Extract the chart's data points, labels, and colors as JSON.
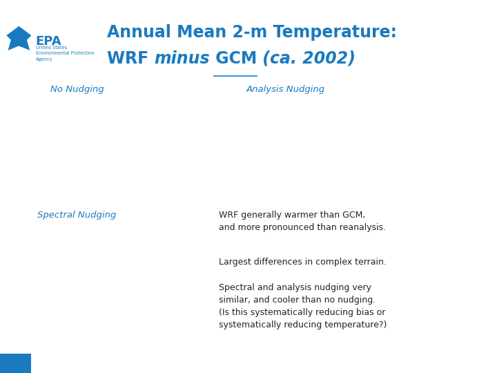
{
  "bg_color": "#ffffff",
  "epa_color": "#1a7abf",
  "title_line1": "Annual Mean 2-m Temperature:",
  "title_fontsize": 17,
  "title_color": "#1a7abf",
  "label_no_nudging": "No Nudging",
  "label_analysis_nudging": "Analysis Nudging",
  "label_spectral_nudging": "Spectral Nudging",
  "label_fontsize": 9.5,
  "label_color": "#1a7abf",
  "bullet1": "WRF generally warmer than GCM,\nand more pronounced than reanalysis.",
  "bullet2": "Largest differences in complex terrain.",
  "bullet3": "Spectral and analysis nudging very\nsimilar, and cooler than no nudging.\n(Is this systematically reducing bias or\nsystematically reducing temperature?)",
  "bullet_fontsize": 9,
  "bullet_color": "#222222",
  "blue_rect_color": "#1a7abf",
  "epa_text": "EPA",
  "epa_subtext": "United States\nEnvironmental Protection\nAgency"
}
